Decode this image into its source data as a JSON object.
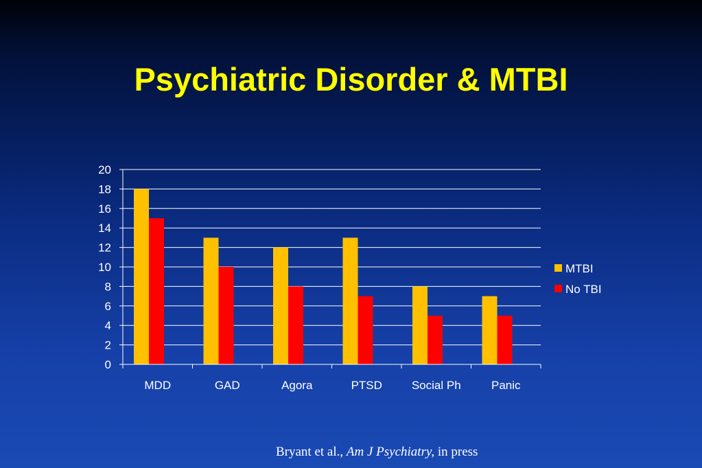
{
  "slide": {
    "title": "Psychiatric Disorder & MTBI",
    "citation": {
      "authors": "Bryant et al.,",
      "journal": "Am J Psychiatry,",
      "status": "in press"
    }
  },
  "colors": {
    "MTBI": "#ffc000",
    "No TBI": "#ff0000",
    "axis": "#ffffff",
    "grid": "#ffffff",
    "text": "#ffffff",
    "title": "#ffff00"
  },
  "chart_data": {
    "type": "bar",
    "title": "Psychiatric Disorder & MTBI",
    "categories": [
      "MDD",
      "GAD",
      "Agora",
      "PTSD",
      "Social Ph",
      "Panic"
    ],
    "series": [
      {
        "name": "MTBI",
        "values": [
          18,
          13,
          12,
          13,
          8,
          7
        ]
      },
      {
        "name": "No TBI",
        "values": [
          15,
          10,
          8,
          7,
          5,
          5
        ]
      }
    ],
    "xlabel": "",
    "ylabel": "",
    "ylim": [
      0,
      20
    ],
    "yticks": [
      0,
      2,
      4,
      6,
      8,
      10,
      12,
      14,
      16,
      18,
      20
    ],
    "grid": true,
    "legend": "right"
  }
}
